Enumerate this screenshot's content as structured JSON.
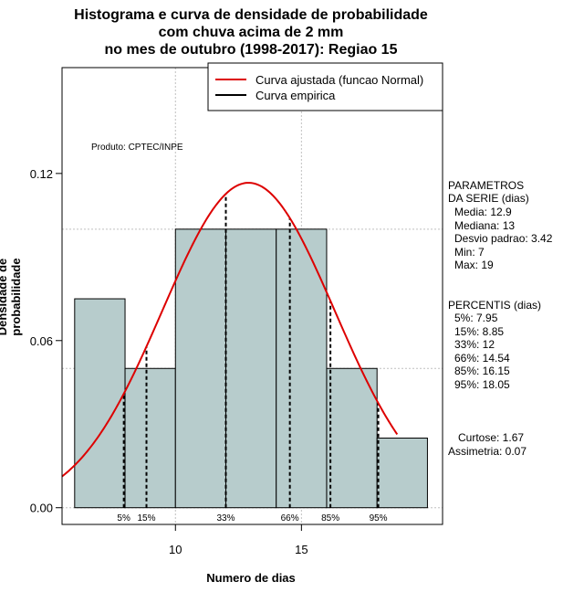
{
  "chart_data": {
    "type": "bar",
    "title": [
      "Histograma e curva de densidade de probabilidade",
      "com chuva acima de 2 mm",
      "no mes de outubro (1998-2017): Regiao 15"
    ],
    "xlabel": "Numero de dias",
    "ylabel": "Densidade de probabilidade",
    "xlim": [
      5.5,
      20.6
    ],
    "ylim": [
      -0.006,
      0.158
    ],
    "xticks": [
      10,
      15
    ],
    "yticks": [
      0.0,
      0.06,
      0.12
    ],
    "ytick_labels": [
      "0.00",
      "0.06",
      "0.12"
    ],
    "grid": true,
    "bins": [
      {
        "x0": 6,
        "x1": 8,
        "density": 0.075
      },
      {
        "x0": 8,
        "x1": 10,
        "density": 0.05
      },
      {
        "x0": 10,
        "x1": 12,
        "density": 0.1
      },
      {
        "x0": 12,
        "x1": 14,
        "density": 0.1
      },
      {
        "x0": 14,
        "x1": 16,
        "density": 0.1
      },
      {
        "x0": 16,
        "x1": 18,
        "density": 0.05
      },
      {
        "x0": 18,
        "x1": 20,
        "density": 0.025
      }
    ],
    "normal_curve": {
      "mean": 12.9,
      "sd": 3.42,
      "x_range": [
        5.5,
        18.8
      ]
    },
    "percentile_lines": [
      {
        "label": "5%",
        "x": 7.95
      },
      {
        "label": "15%",
        "x": 8.85
      },
      {
        "label": "33%",
        "x": 12
      },
      {
        "label": "66%",
        "x": 14.54
      },
      {
        "label": "85%",
        "x": 16.15
      },
      {
        "label": "95%",
        "x": 18.05
      }
    ],
    "legend": {
      "position": "top-right",
      "entries": [
        {
          "label": "Curva ajustada (funcao Normal)",
          "color": "#dd0000"
        },
        {
          "label": "Curva empirica",
          "color": "#000000"
        }
      ]
    },
    "annotation": "Produto: CPTEC/INPE",
    "bar_color": "#b7cccc",
    "curve_color": "#dd0000"
  },
  "parametros": {
    "header": [
      "PARAMETROS",
      "DA SERIE (dias)"
    ],
    "items": [
      "Media: 12.9",
      "Mediana: 13",
      "Desvio padrao: 3.42",
      "Min: 7",
      "Max: 19"
    ]
  },
  "percentis": {
    "header": "PERCENTIS (dias)",
    "items": [
      "5%: 7.95",
      "15%: 8.85",
      "33%: 12",
      "66%: 14.54",
      "85%: 16.15",
      "95%: 18.05"
    ]
  },
  "stats": [
    "Curtose: 1.67",
    "Assimetria: 0.07"
  ]
}
